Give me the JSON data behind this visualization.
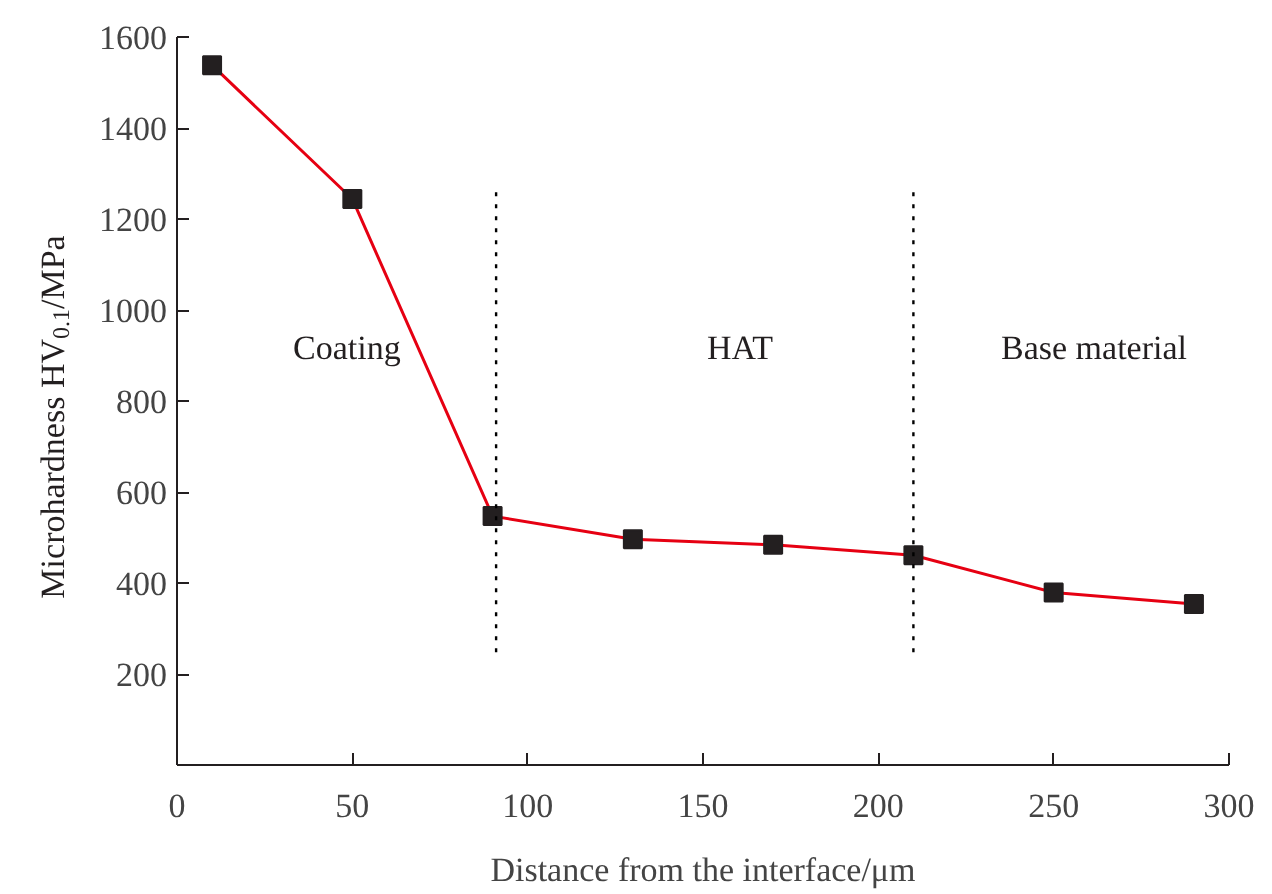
{
  "chart_data": {
    "type": "line",
    "xlabel": "Distance from the interface/μm",
    "ylabel": "Microhardness HV$_{0.1}$/MPa",
    "x": [
      10,
      50,
      90,
      130,
      170,
      210,
      250,
      290
    ],
    "series": [
      {
        "color": "#e60012",
        "values": [
          1538,
          1244,
          547,
          496,
          484,
          461,
          379,
          354
        ]
      }
    ],
    "marker": "square",
    "line_style": "solid",
    "grid": false,
    "legend": false,
    "xlim": [
      0,
      300
    ],
    "xticks": [
      0,
      50,
      100,
      150,
      200,
      250,
      300
    ],
    "ylim": [
      0,
      1600
    ],
    "yticks": [
      {
        "value": 0,
        "label": null
      },
      200,
      400,
      600,
      800,
      1000,
      1200,
      1400,
      1600
    ],
    "ref_lines": [
      {
        "axis": "x",
        "value": 91,
        "line_style": "dotted",
        "color": "#000000"
      },
      {
        "axis": "x",
        "value": 210,
        "line_style": "dotted",
        "color": "#000000"
      }
    ],
    "annotations": [
      "Coating",
      "HAT",
      "Base material"
    ]
  }
}
